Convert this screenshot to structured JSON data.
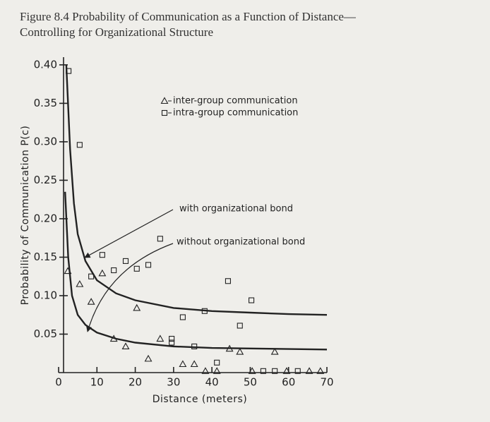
{
  "chart_data": {
    "type": "scatter",
    "title": [
      "Figure 8.4 Probability of Communication as a Function of Distance—",
      "Controlling for Organizational Structure"
    ],
    "x_label": "Distance (meters)",
    "y_label": "Probability of Communication P(c)",
    "xlim": [
      0,
      70
    ],
    "ylim": [
      0,
      0.41
    ],
    "xticks": [
      0,
      10,
      20,
      30,
      40,
      50,
      60,
      70
    ],
    "yticks": [
      0.05,
      {
        "value": 0.1,
        "label": "0.10"
      },
      0.15,
      {
        "value": 0.2,
        "label": "0.20"
      },
      0.25,
      {
        "value": 0.3,
        "label": "0.30"
      },
      0.35,
      {
        "value": 0.4,
        "label": "0.40"
      }
    ],
    "series": [
      {
        "name": "inter-group communication",
        "marker": "triangle",
        "color": "#222",
        "x": [
          2.4,
          5.5,
          8.5,
          11.4,
          20.4,
          14.4,
          17.5,
          23.4,
          26.5,
          32.4,
          35.4,
          38.3,
          41.3,
          44.6,
          47.3,
          56.4,
          50.5,
          59.5,
          65.4,
          68.3
        ],
        "y": [
          0.132,
          0.115,
          0.092,
          0.129,
          0.084,
          0.044,
          0.034,
          0.018,
          0.044,
          0.011,
          0.011,
          0.002,
          0.002,
          0.031,
          0.027,
          0.027,
          0.002,
          0.002,
          0.002,
          0.002
        ]
      },
      {
        "name": "intra-group communication",
        "marker": "square",
        "color": "#222",
        "x": [
          2.6,
          5.5,
          11.4,
          8.5,
          14.4,
          17.5,
          20.4,
          23.4,
          26.5,
          32.4,
          38.1,
          44.2,
          47.3,
          50.3,
          29.5,
          29.5,
          35.4,
          41.3,
          53.4,
          56.4,
          62.4
        ],
        "y": [
          0.392,
          0.296,
          0.153,
          0.125,
          0.133,
          0.145,
          0.135,
          0.14,
          0.174,
          0.072,
          0.08,
          0.119,
          0.061,
          0.094,
          0.044,
          0.039,
          0.034,
          0.013,
          0.002,
          0.002,
          0.002
        ]
      }
    ],
    "curves": [
      {
        "label": "with organizational bond",
        "x": [
          2,
          3,
          4,
          5,
          7,
          10,
          15,
          20,
          30,
          40,
          50,
          60,
          70
        ],
        "y": [
          0.4,
          0.29,
          0.22,
          0.18,
          0.145,
          0.12,
          0.103,
          0.094,
          0.084,
          0.08,
          0.078,
          0.076,
          0.075
        ]
      },
      {
        "label": "without organizational bond",
        "x": [
          1.7,
          2.5,
          3.5,
          5,
          7,
          10,
          15,
          20,
          30,
          40,
          55,
          70
        ],
        "y": [
          0.235,
          0.15,
          0.1,
          0.075,
          0.062,
          0.052,
          0.044,
          0.039,
          0.034,
          0.032,
          0.031,
          0.03
        ]
      }
    ]
  }
}
